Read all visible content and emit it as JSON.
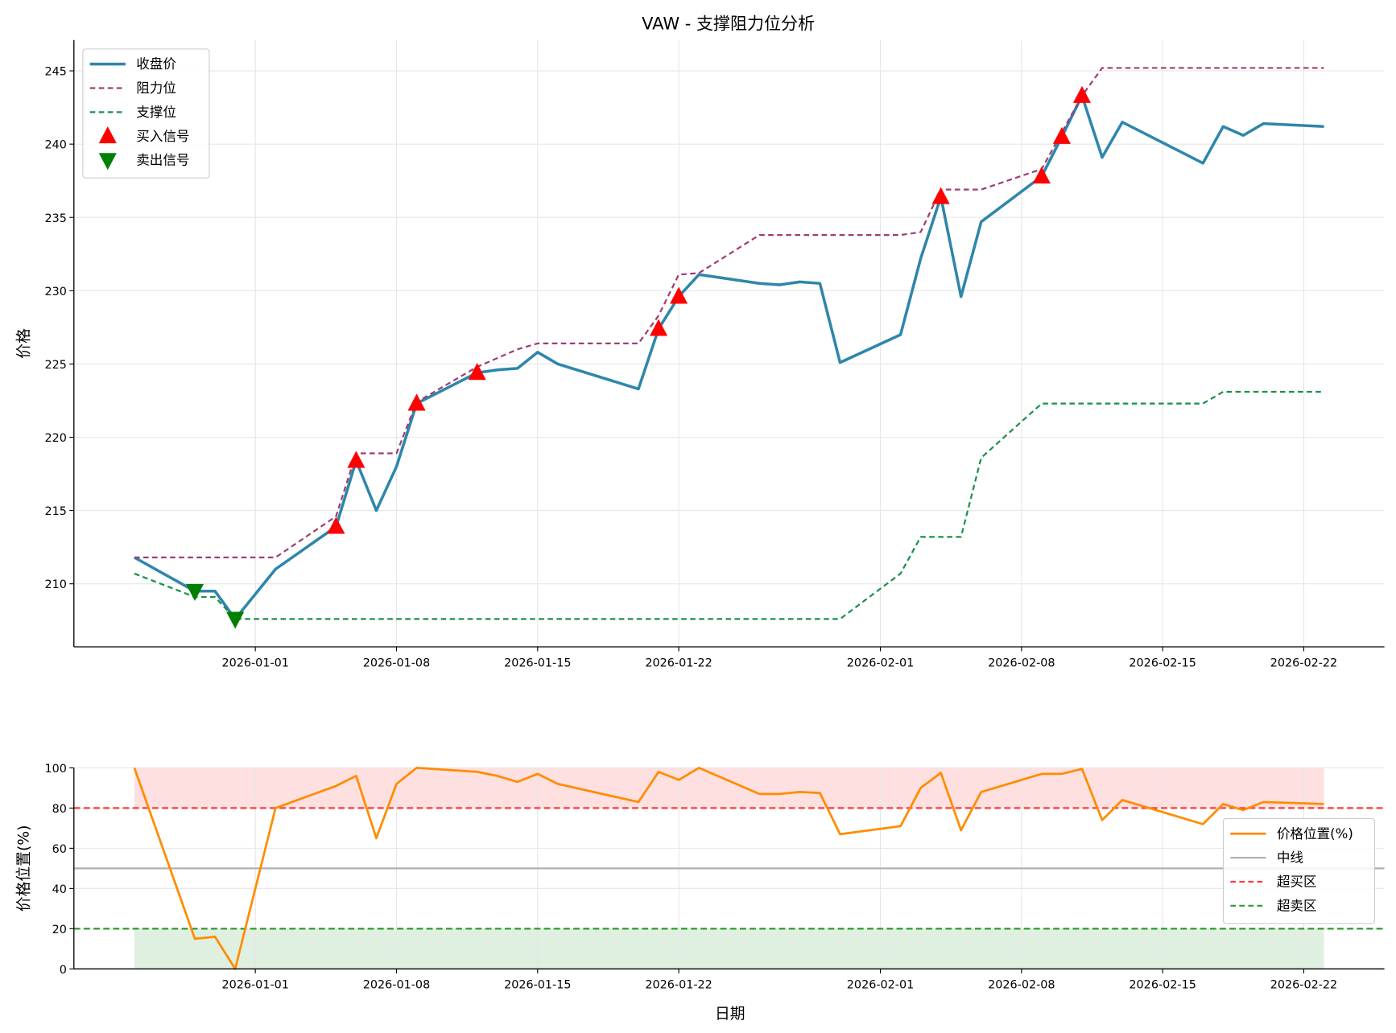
{
  "chart_data": [
    {
      "type": "line",
      "title": "VAW - 支撑阻力位分析",
      "xlabel": "",
      "ylabel": "价格",
      "ylim": [
        205.7,
        247.1
      ],
      "xlim": [
        "2025-12-23",
        "2026-02-26"
      ],
      "grid": true,
      "legend_position": "top-left",
      "yticks": [
        210,
        215,
        220,
        225,
        230,
        235,
        240,
        245
      ],
      "xticks": [
        "2026-01-01",
        "2026-01-08",
        "2026-01-15",
        "2026-01-22",
        "2026-02-01",
        "2026-02-08",
        "2026-02-15",
        "2026-02-22"
      ],
      "x": [
        "2025-12-26",
        "2025-12-29",
        "2025-12-30",
        "2025-12-31",
        "2026-01-02",
        "2026-01-05",
        "2026-01-06",
        "2026-01-07",
        "2026-01-08",
        "2026-01-09",
        "2026-01-12",
        "2026-01-13",
        "2026-01-14",
        "2026-01-15",
        "2026-01-16",
        "2026-01-20",
        "2026-01-21",
        "2026-01-22",
        "2026-01-23",
        "2026-01-26",
        "2026-01-27",
        "2026-01-28",
        "2026-01-29",
        "2026-01-30",
        "2026-02-02",
        "2026-02-03",
        "2026-02-04",
        "2026-02-05",
        "2026-02-06",
        "2026-02-09",
        "2026-02-10",
        "2026-02-11",
        "2026-02-12",
        "2026-02-13",
        "2026-02-17",
        "2026-02-18",
        "2026-02-19",
        "2026-02-20",
        "2026-02-23"
      ],
      "series": [
        {
          "name": "收盘价",
          "color": "#2e86ab",
          "style": "solid",
          "values": [
            211.8,
            209.5,
            209.5,
            207.6,
            211.0,
            213.9,
            218.4,
            215.0,
            218.0,
            222.3,
            224.4,
            224.6,
            224.7,
            225.8,
            225.0,
            223.3,
            227.4,
            229.6,
            231.1,
            230.5,
            230.4,
            230.6,
            230.5,
            225.1,
            227.0,
            232.2,
            236.4,
            229.6,
            234.7,
            237.8,
            240.5,
            243.3,
            239.1,
            241.5,
            238.7,
            241.2,
            240.6,
            241.4,
            241.2
          ]
        },
        {
          "name": "阻力位",
          "color": "#a23b72",
          "style": "dashed",
          "values": [
            211.8,
            211.8,
            211.8,
            211.8,
            211.8,
            214.6,
            218.9,
            218.9,
            218.9,
            222.4,
            224.8,
            225.4,
            226.0,
            226.4,
            226.4,
            226.4,
            228.3,
            231.1,
            231.2,
            233.8,
            233.8,
            233.8,
            233.8,
            233.8,
            233.8,
            234.0,
            236.9,
            236.9,
            236.9,
            238.3,
            240.8,
            243.3,
            245.2,
            245.2,
            245.2,
            245.2,
            245.2,
            245.2,
            245.2
          ]
        },
        {
          "name": "支撑位",
          "color": "#1a8f4a",
          "style": "dashed",
          "values": [
            210.7,
            209.1,
            209.1,
            207.6,
            207.6,
            207.6,
            207.6,
            207.6,
            207.6,
            207.6,
            207.6,
            207.6,
            207.6,
            207.6,
            207.6,
            207.6,
            207.6,
            207.6,
            207.6,
            207.6,
            207.6,
            207.6,
            207.6,
            207.6,
            210.7,
            213.2,
            213.2,
            213.2,
            218.6,
            222.3,
            222.3,
            222.3,
            222.3,
            222.3,
            222.3,
            223.1,
            223.1,
            223.1,
            223.1
          ]
        }
      ],
      "markers": [
        {
          "name": "买入信号",
          "color": "#ff0000",
          "shape": "triangle-up",
          "x": [
            "2026-01-05",
            "2026-01-06",
            "2026-01-09",
            "2026-01-12",
            "2026-01-21",
            "2026-01-22",
            "2026-02-04",
            "2026-02-09",
            "2026-02-10",
            "2026-02-11"
          ],
          "values": [
            213.9,
            218.4,
            222.3,
            224.4,
            227.4,
            229.6,
            236.4,
            237.8,
            240.5,
            243.3
          ]
        },
        {
          "name": "卖出信号",
          "color": "#008000",
          "shape": "triangle-down",
          "x": [
            "2025-12-29",
            "2025-12-31"
          ],
          "values": [
            209.5,
            207.6
          ]
        }
      ]
    },
    {
      "type": "line",
      "title": "",
      "xlabel": "日期",
      "ylabel": "价格位置(%)",
      "ylim": [
        0,
        100
      ],
      "xlim": [
        "2025-12-23",
        "2026-02-26"
      ],
      "grid": true,
      "legend_position": "center-right",
      "yticks": [
        0,
        20,
        40,
        60,
        80,
        100
      ],
      "xticks": [
        "2026-01-01",
        "2026-01-08",
        "2026-01-15",
        "2026-01-22",
        "2026-02-01",
        "2026-02-08",
        "2026-02-15",
        "2026-02-22"
      ],
      "series": [
        {
          "name": "价格位置(%)",
          "color": "#ff8c00",
          "style": "solid",
          "values": [
            100,
            15,
            16,
            0,
            80,
            91,
            96,
            65,
            92,
            100,
            98,
            96,
            93,
            97,
            92,
            83,
            98,
            94,
            100,
            87,
            87,
            88,
            87.5,
            67,
            71,
            90,
            97.5,
            69,
            88,
            97,
            97,
            99.5,
            74,
            84,
            72,
            82,
            79,
            83,
            82
          ]
        }
      ],
      "hlines": [
        {
          "name": "中线",
          "value": 50,
          "color": "#b0b0b0",
          "style": "solid"
        },
        {
          "name": "超买区",
          "value": 80,
          "color": "#ff3b3b",
          "style": "dashed"
        },
        {
          "name": "超卖区",
          "value": 20,
          "color": "#2e9a2e",
          "style": "dashed"
        }
      ],
      "bands": [
        {
          "from": 80,
          "to": 100,
          "color": "#ffcccc"
        },
        {
          "from": 0,
          "to": 20,
          "color": "#cce6cc"
        }
      ]
    }
  ]
}
